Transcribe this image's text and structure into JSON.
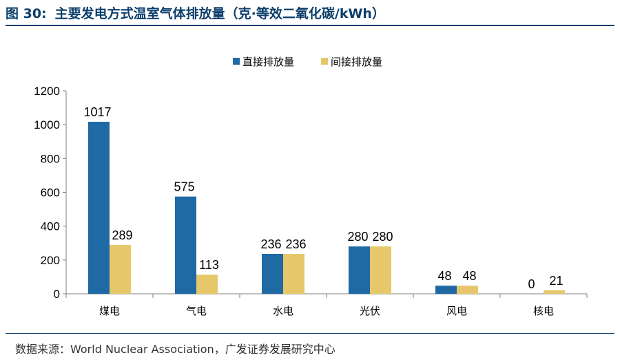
{
  "header": {
    "figure_label": "图 30:",
    "title": "主要发电方式温室气体排放量（克·等效二氧化碳/kWh）"
  },
  "footer": {
    "source": "数据来源：World Nuclear Association，广发证券发展研究中心"
  },
  "colors": {
    "direct": "#1f6aa5",
    "indirect": "#e6c86a",
    "title": "#0b3e6b"
  },
  "chart_data": {
    "type": "bar",
    "categories": [
      "煤电",
      "气电",
      "水电",
      "光伏",
      "风电",
      "核电"
    ],
    "series": [
      {
        "name": "直接排放量",
        "values": [
          1017,
          575,
          236,
          280,
          48,
          0
        ]
      },
      {
        "name": "间接排放量",
        "values": [
          289,
          113,
          236,
          280,
          48,
          21
        ]
      }
    ],
    "y_ticks": [
      "0",
      "200",
      "400",
      "600",
      "800",
      "1000",
      "1200"
    ],
    "ylim": [
      0,
      1200
    ],
    "grid": false,
    "legend_position": "top-center",
    "data_labels": true
  }
}
